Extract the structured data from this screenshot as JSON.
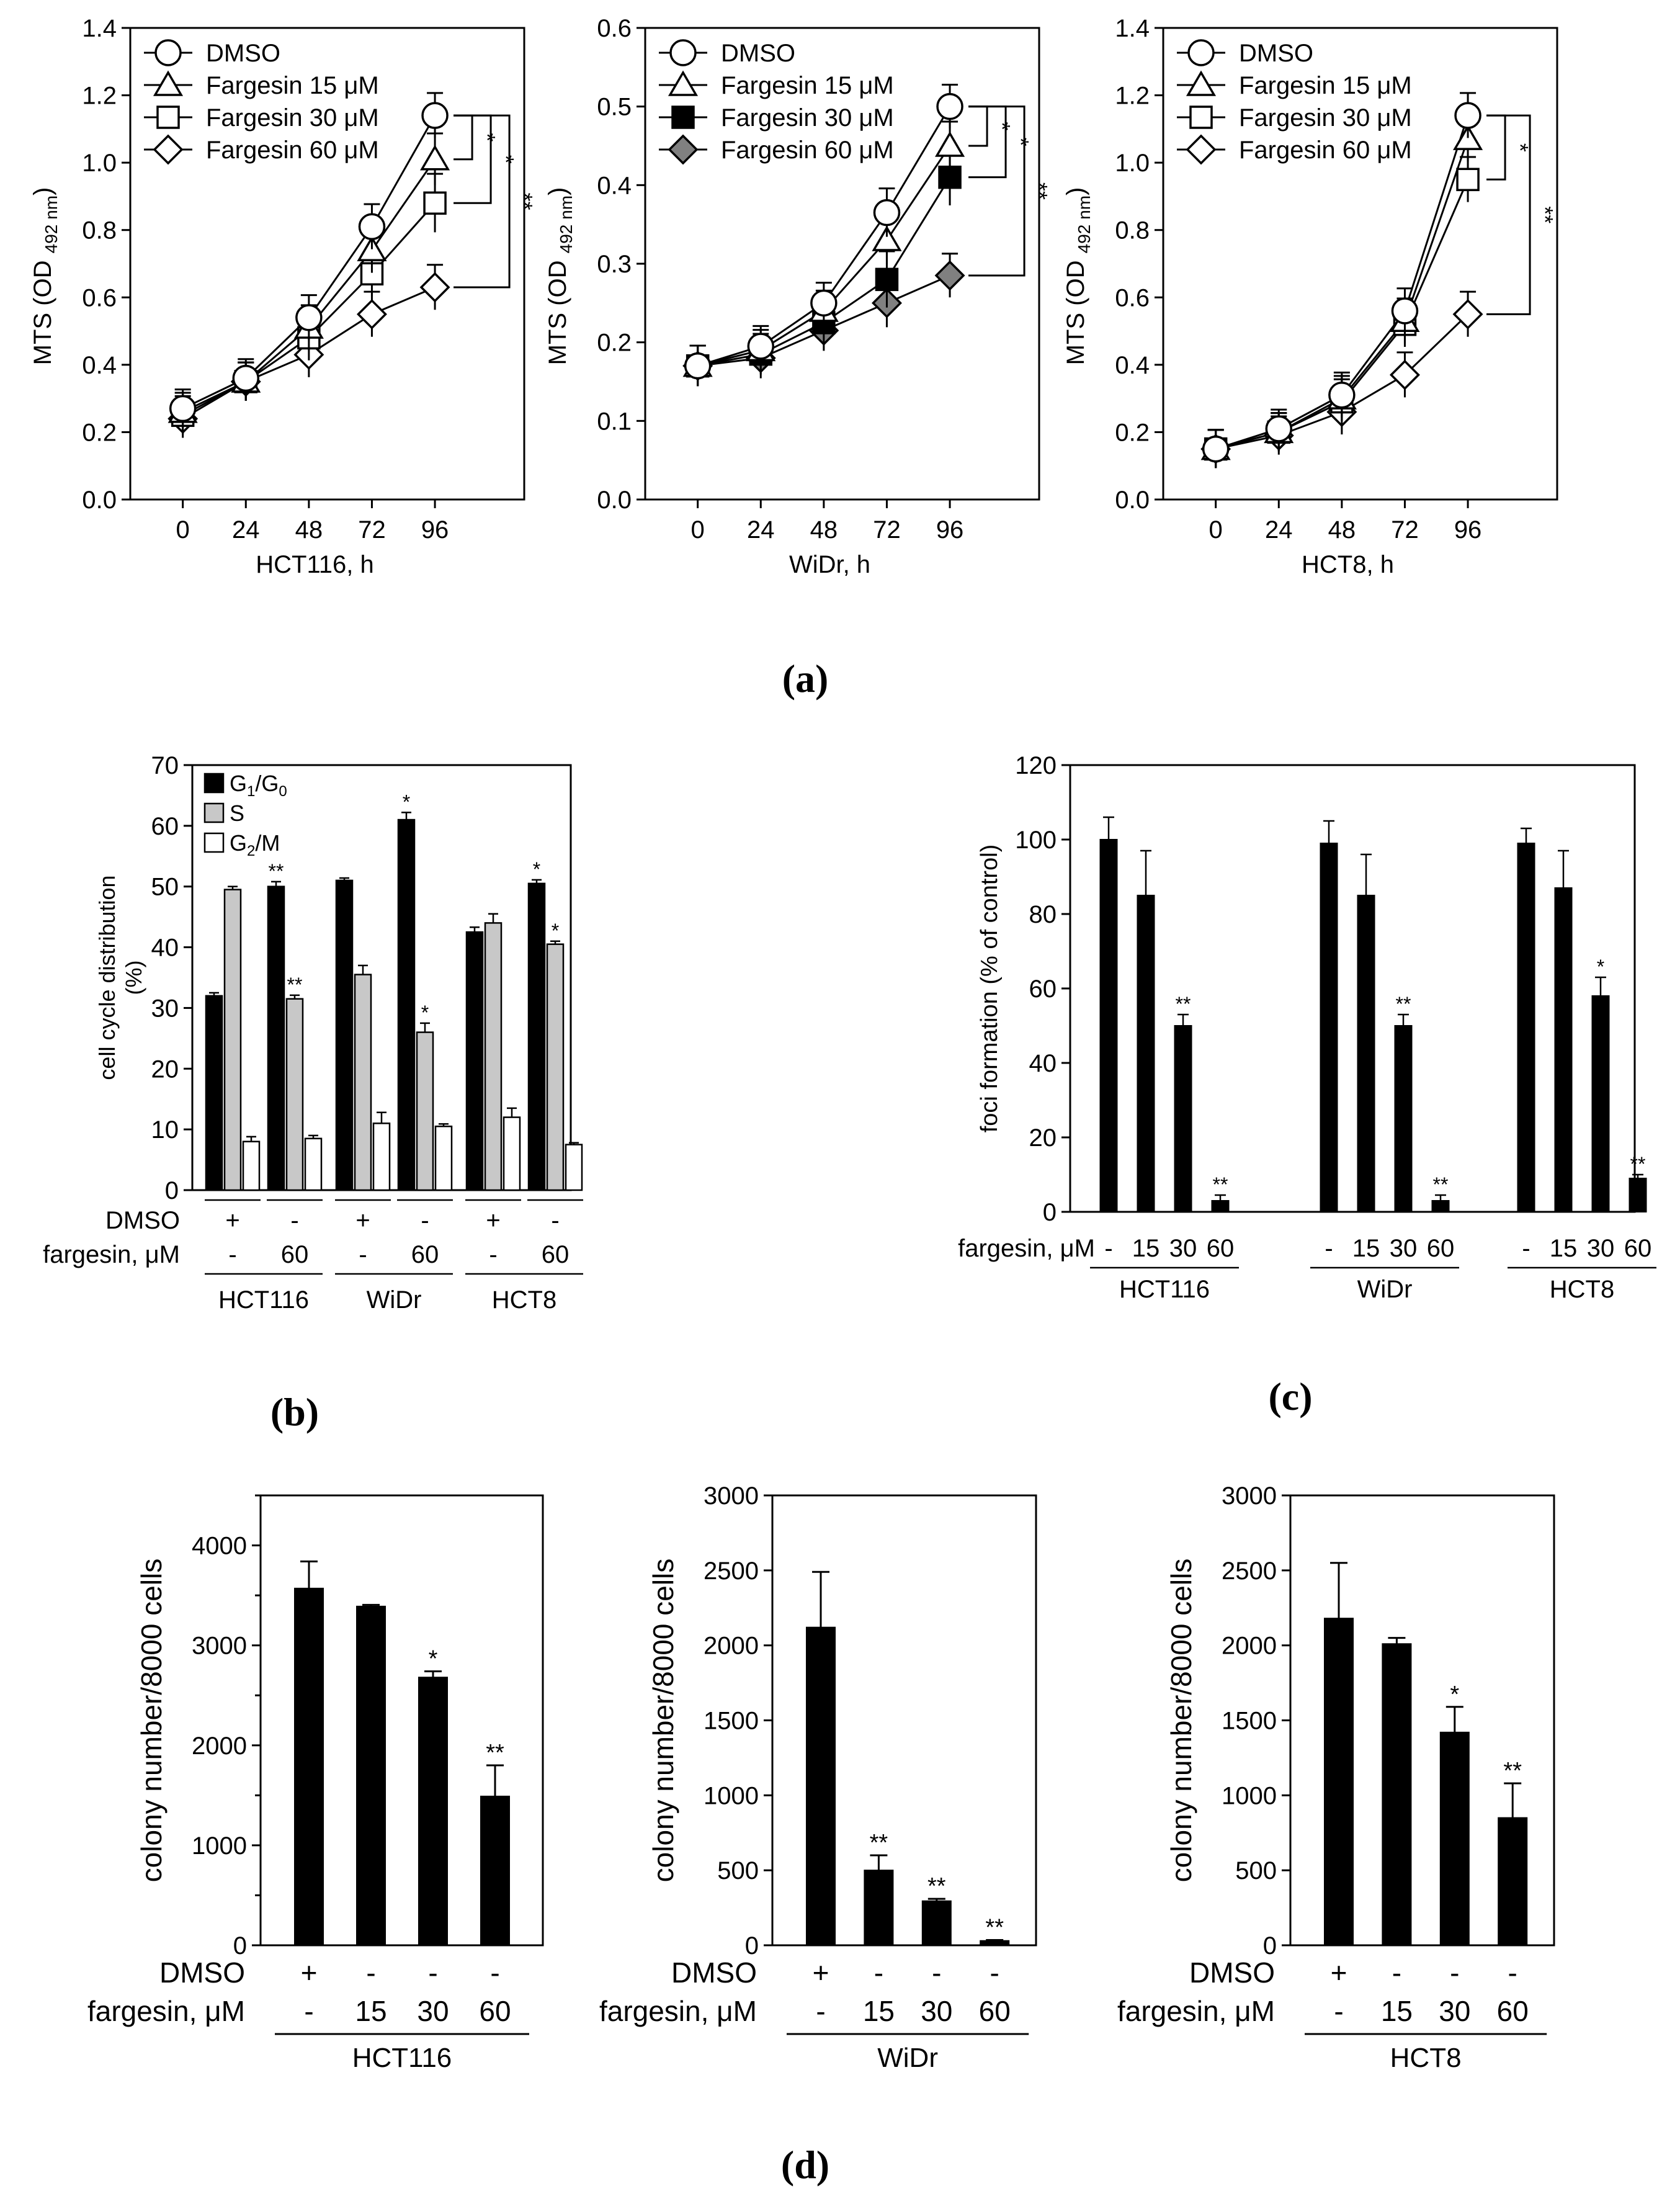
{
  "panel_labels": {
    "a": "(a)",
    "b": "(b)",
    "c": "(c)",
    "d": "(d)"
  },
  "colors": {
    "black": "#000000",
    "gray_fill": "#808080",
    "light_gray": "#c8c8c8",
    "white": "#ffffff"
  },
  "chart_data": [
    {
      "id": "a1",
      "type": "line",
      "xlabel": "HCT116, h",
      "ylabel_main": "MTS (OD",
      "ylabel_sub": "492 nm",
      "ylabel_close": ")",
      "x": [
        0,
        24,
        48,
        72,
        96
      ],
      "xlim": [
        -20,
        130
      ],
      "ylim": [
        0,
        1.4
      ],
      "yticks": [
        0.0,
        0.2,
        0.4,
        0.6,
        0.8,
        1.0,
        1.2,
        1.4
      ],
      "ytick_labels": [
        "0.0",
        "0.2",
        "0.4",
        "0.6",
        "0.8",
        "1.0",
        "1.2",
        "1.4"
      ],
      "xtick_labels": [
        "0",
        "24",
        "48",
        "72",
        "96"
      ],
      "series": [
        {
          "name": "DMSO",
          "marker": "circle",
          "values": [
            0.27,
            0.36,
            0.54,
            0.81,
            1.14
          ],
          "err": [
            0.02,
            0.02,
            0.03,
            0.03,
            0.03
          ]
        },
        {
          "name": "Fargesin 15 μM",
          "marker": "triangle",
          "values": [
            0.26,
            0.35,
            0.51,
            0.74,
            1.01
          ],
          "err": [
            0.02,
            0.02,
            0.03,
            0.03,
            0.04
          ]
        },
        {
          "name": "Fargesin 30 μM",
          "marker": "square",
          "values": [
            0.25,
            0.35,
            0.48,
            0.67,
            0.88
          ],
          "err": [
            0.02,
            0.02,
            0.03,
            0.03,
            0.05
          ]
        },
        {
          "name": "Fargesin 60 μM",
          "marker": "diamond",
          "values": [
            0.24,
            0.35,
            0.43,
            0.55,
            0.63
          ],
          "err": [
            0.02,
            0.02,
            0.03,
            0.03,
            0.03
          ]
        }
      ],
      "significance": [
        {
          "from": 0,
          "to": 1,
          "label": "*"
        },
        {
          "from": 0,
          "to": 2,
          "label": "*"
        },
        {
          "from": 0,
          "to": 3,
          "label": "**"
        }
      ]
    },
    {
      "id": "a2",
      "type": "line",
      "xlabel": "WiDr, h",
      "ylabel_main": "MTS (OD",
      "ylabel_sub": "492 nm",
      "ylabel_close": ")",
      "x": [
        0,
        24,
        48,
        72,
        96
      ],
      "xlim": [
        -20,
        130
      ],
      "ylim": [
        0,
        0.6
      ],
      "yticks": [
        0.0,
        0.1,
        0.2,
        0.3,
        0.4,
        0.5,
        0.6
      ],
      "ytick_labels": [
        "0.0",
        "0.1",
        "0.2",
        "0.3",
        "0.4",
        "0.5",
        "0.6"
      ],
      "xtick_labels": [
        "0",
        "24",
        "48",
        "72",
        "96"
      ],
      "series": [
        {
          "name": "DMSO",
          "marker": "circle",
          "values": [
            0.17,
            0.195,
            0.25,
            0.365,
            0.5
          ],
          "err": [
            0.01,
            0.01,
            0.01,
            0.015,
            0.012
          ]
        },
        {
          "name": "Fargesin 15 μM",
          "marker": "triangle",
          "values": [
            0.17,
            0.19,
            0.24,
            0.33,
            0.45
          ],
          "err": [
            0.01,
            0.01,
            0.01,
            0.015,
            0.015
          ]
        },
        {
          "name": "Fargesin 30 μM",
          "marker": "square-filled",
          "values": [
            0.17,
            0.185,
            0.225,
            0.28,
            0.41
          ],
          "err": [
            0.01,
            0.01,
            0.01,
            0.02,
            0.02
          ]
        },
        {
          "name": "Fargesin 60 μM",
          "marker": "diamond-gray",
          "values": [
            0.17,
            0.18,
            0.215,
            0.25,
            0.285
          ],
          "err": [
            0.01,
            0.01,
            0.01,
            0.015,
            0.012
          ]
        }
      ],
      "significance": [
        {
          "from": 0,
          "to": 1,
          "label": "*"
        },
        {
          "from": 0,
          "to": 2,
          "label": "*"
        },
        {
          "from": 0,
          "to": 3,
          "label": "**"
        }
      ]
    },
    {
      "id": "a3",
      "type": "line",
      "xlabel": "HCT8, h",
      "ylabel_main": "MTS (OD",
      "ylabel_sub": "492 nm",
      "ylabel_close": ")",
      "x": [
        0,
        24,
        48,
        72,
        96
      ],
      "xlim": [
        -20,
        130
      ],
      "ylim": [
        0,
        1.4
      ],
      "yticks": [
        0.0,
        0.2,
        0.4,
        0.6,
        0.8,
        1.0,
        1.2,
        1.4
      ],
      "ytick_labels": [
        "0.0",
        "0.2",
        "0.4",
        "0.6",
        "0.8",
        "1.0",
        "1.2",
        "1.4"
      ],
      "xtick_labels": [
        "0",
        "24",
        "48",
        "72",
        "96"
      ],
      "series": [
        {
          "name": "DMSO",
          "marker": "circle",
          "values": [
            0.15,
            0.21,
            0.31,
            0.56,
            1.14
          ],
          "err": [
            0.02,
            0.02,
            0.03,
            0.03,
            0.03
          ]
        },
        {
          "name": "Fargesin 15 μM",
          "marker": "triangle",
          "values": [
            0.15,
            0.2,
            0.3,
            0.53,
            1.07
          ],
          "err": [
            0.02,
            0.02,
            0.03,
            0.03,
            0.03
          ]
        },
        {
          "name": "Fargesin 30 μM",
          "marker": "square",
          "values": [
            0.15,
            0.2,
            0.29,
            0.52,
            0.95
          ],
          "err": [
            0.02,
            0.02,
            0.03,
            0.03,
            0.03
          ]
        },
        {
          "name": "Fargesin 60 μM",
          "marker": "diamond",
          "values": [
            0.15,
            0.19,
            0.26,
            0.37,
            0.55
          ],
          "err": [
            0.02,
            0.02,
            0.03,
            0.03,
            0.03
          ]
        }
      ],
      "significance": [
        {
          "from": 0,
          "to": 2,
          "label": "*"
        },
        {
          "from": 0,
          "to": 3,
          "label": "**"
        }
      ]
    },
    {
      "id": "b",
      "type": "bar",
      "ylabel": [
        "cell cycle distribution",
        "(%)"
      ],
      "ylim": [
        0,
        70
      ],
      "yticks": [
        0,
        10,
        20,
        30,
        40,
        50,
        60,
        70
      ],
      "ytick_labels": [
        "0",
        "10",
        "20",
        "30",
        "40",
        "50",
        "60",
        "70"
      ],
      "groups": [
        {
          "dmso": "+",
          "fargesin": "-"
        },
        {
          "dmso": "-",
          "fargesin": "60"
        },
        {
          "dmso": "+",
          "fargesin": "-"
        },
        {
          "dmso": "-",
          "fargesin": "60"
        },
        {
          "dmso": "+",
          "fargesin": "-"
        },
        {
          "dmso": "-",
          "fargesin": "60"
        }
      ],
      "series": [
        {
          "name_main": "G",
          "name_sub1": "1",
          "name_sep": "/G",
          "name_sub2": "0",
          "fill": "black",
          "values": [
            32,
            50,
            51,
            61,
            42.5,
            50.5
          ],
          "err": [
            0.5,
            0.8,
            0.4,
            1.2,
            0.8,
            0.6
          ],
          "sig": [
            "",
            "**",
            "",
            "*",
            "",
            "*"
          ]
        },
        {
          "name_main": "S",
          "name_sub1": "",
          "name_sep": "",
          "name_sub2": "",
          "fill": "gray",
          "values": [
            49.5,
            31.5,
            35.5,
            26,
            44,
            40.5
          ],
          "err": [
            0.5,
            0.6,
            1.5,
            1.5,
            1.5,
            0.5
          ],
          "sig": [
            "",
            "**",
            "",
            "*",
            "",
            "*"
          ]
        },
        {
          "name_main": "G",
          "name_sub1": "2",
          "name_sep": "/M",
          "name_sub2": "",
          "fill": "white",
          "values": [
            8,
            8.5,
            11,
            10.5,
            12,
            7.5
          ],
          "err": [
            0.8,
            0.5,
            1.8,
            0.4,
            1.5,
            0.3
          ],
          "sig": [
            "",
            "",
            "",
            "",
            "",
            ""
          ]
        }
      ],
      "row_labels": {
        "dmso": "DMSO",
        "fargesin": "fargesin, μM"
      },
      "cell_lines": [
        "HCT116",
        "WiDr",
        "HCT8"
      ]
    },
    {
      "id": "c",
      "type": "bar",
      "ylabel": "foci formation (% of control)",
      "ylim": [
        0,
        120
      ],
      "yticks": [
        0,
        20,
        40,
        60,
        80,
        100,
        120
      ],
      "ytick_labels": [
        "0",
        "20",
        "40",
        "60",
        "80",
        "100",
        "120"
      ],
      "row_label": "fargesin, μM",
      "dose_labels": [
        "-",
        "15",
        "30",
        "60"
      ],
      "cell_lines": [
        {
          "name": "HCT116",
          "values": [
            100,
            85,
            50,
            3
          ],
          "err": [
            6,
            12,
            3,
            1.5
          ],
          "sig": [
            "",
            "",
            "**",
            "**"
          ]
        },
        {
          "name": "WiDr",
          "values": [
            99,
            85,
            50,
            3
          ],
          "err": [
            6,
            11,
            3,
            1.5
          ],
          "sig": [
            "",
            "",
            "**",
            "**"
          ]
        },
        {
          "name": "HCT8",
          "values": [
            99,
            87,
            58,
            9
          ],
          "err": [
            4,
            10,
            5,
            1
          ],
          "sig": [
            "",
            "",
            "*",
            "**"
          ]
        }
      ]
    },
    {
      "id": "d1",
      "type": "bar",
      "ylabel": "colony number/8000 cells",
      "ylim": [
        0,
        4500
      ],
      "yticks": [
        0,
        1000,
        2000,
        3000,
        4000
      ],
      "ytick_labels": [
        "0",
        "1000",
        "2000",
        "3000",
        "4000"
      ],
      "minor_ticks": [
        500,
        1500,
        2500,
        3500,
        4500
      ],
      "row_labels": {
        "dmso": "DMSO",
        "fargesin": "fargesin, μM"
      },
      "dmso": [
        "+",
        "-",
        "-",
        "-"
      ],
      "fargesin": [
        "-",
        "15",
        "30",
        "60"
      ],
      "cell_line": "HCT116",
      "values": [
        3570,
        3390,
        2680,
        1490
      ],
      "err": [
        270,
        15,
        60,
        310
      ],
      "sig": [
        "",
        "",
        "*",
        "**"
      ]
    },
    {
      "id": "d2",
      "type": "bar",
      "ylabel": "colony number/8000 cells",
      "ylim": [
        0,
        3000
      ],
      "yticks": [
        0,
        500,
        1000,
        1500,
        2000,
        2500,
        3000
      ],
      "ytick_labels": [
        "0",
        "500",
        "1000",
        "1500",
        "2000",
        "2500",
        "3000"
      ],
      "minor_ticks": [],
      "row_labels": {
        "dmso": "DMSO",
        "fargesin": "fargesin, μM"
      },
      "dmso": [
        "+",
        "-",
        "-",
        "-"
      ],
      "fargesin": [
        "-",
        "15",
        "30",
        "60"
      ],
      "cell_line": "WiDr",
      "values": [
        2120,
        500,
        295,
        30
      ],
      "err": [
        370,
        100,
        15,
        5
      ],
      "sig": [
        "",
        "**",
        "**",
        "**"
      ]
    },
    {
      "id": "d3",
      "type": "bar",
      "ylabel": "colony number/8000 cells",
      "ylim": [
        0,
        3000
      ],
      "yticks": [
        0,
        500,
        1000,
        1500,
        2000,
        2500,
        3000
      ],
      "ytick_labels": [
        "0",
        "500",
        "1000",
        "1500",
        "2000",
        "2500",
        "3000"
      ],
      "minor_ticks": [],
      "row_labels": {
        "dmso": "DMSO",
        "fargesin": "fargesin, μM"
      },
      "dmso": [
        "+",
        "-",
        "-",
        "-"
      ],
      "fargesin": [
        "-",
        "15",
        "30",
        "60"
      ],
      "cell_line": "HCT8",
      "values": [
        2180,
        2010,
        1420,
        850
      ],
      "err": [
        370,
        40,
        170,
        230
      ],
      "sig": [
        "",
        "",
        "*",
        "**"
      ]
    }
  ]
}
